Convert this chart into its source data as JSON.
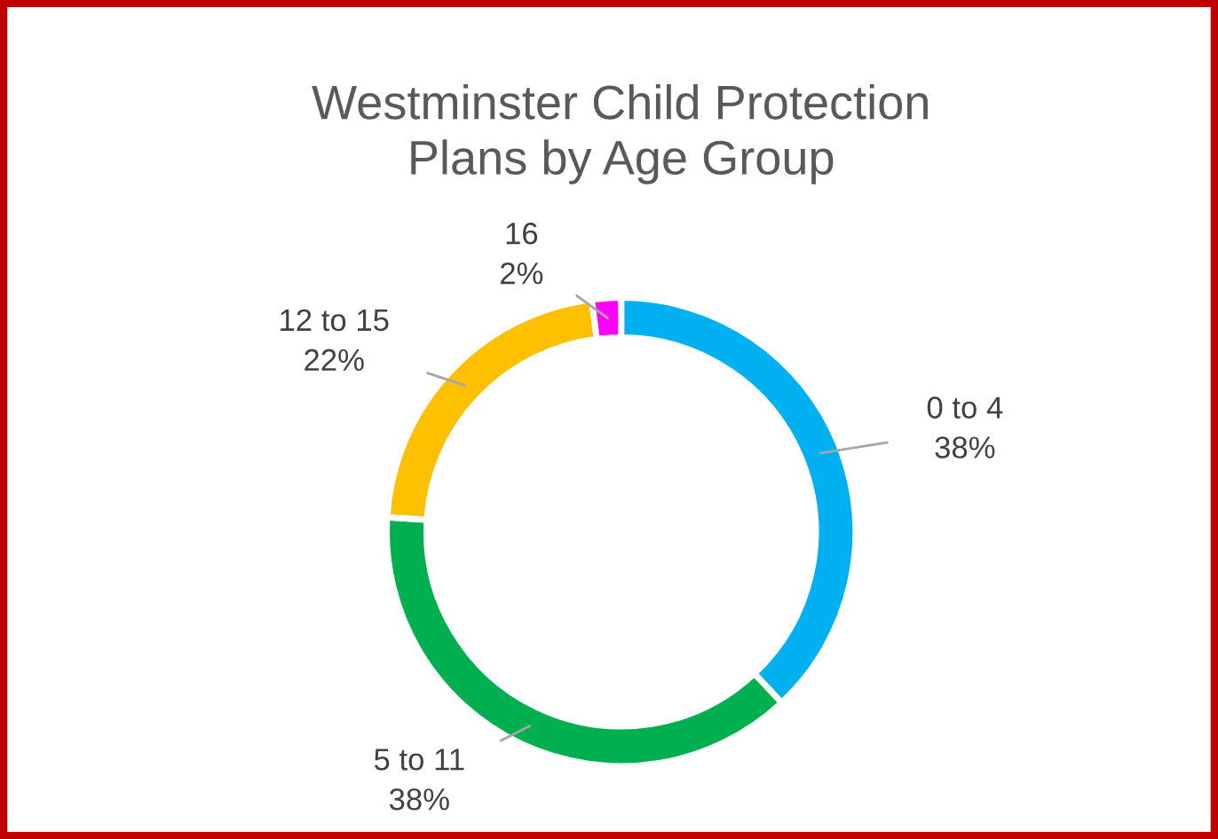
{
  "chart_data": {
    "type": "donut",
    "title": "Westminster Child Protection\nPlans by Age Group",
    "categories": [
      "0 to 4",
      "5 to 11",
      "12 to 15",
      "16"
    ],
    "values": [
      38,
      38,
      22,
      2
    ],
    "colors": [
      "#00b0f0",
      "#00b050",
      "#ffc000",
      "#ff00ff"
    ],
    "value_labels": [
      "38%",
      "38%",
      "22%",
      "2%"
    ],
    "legend": false
  }
}
